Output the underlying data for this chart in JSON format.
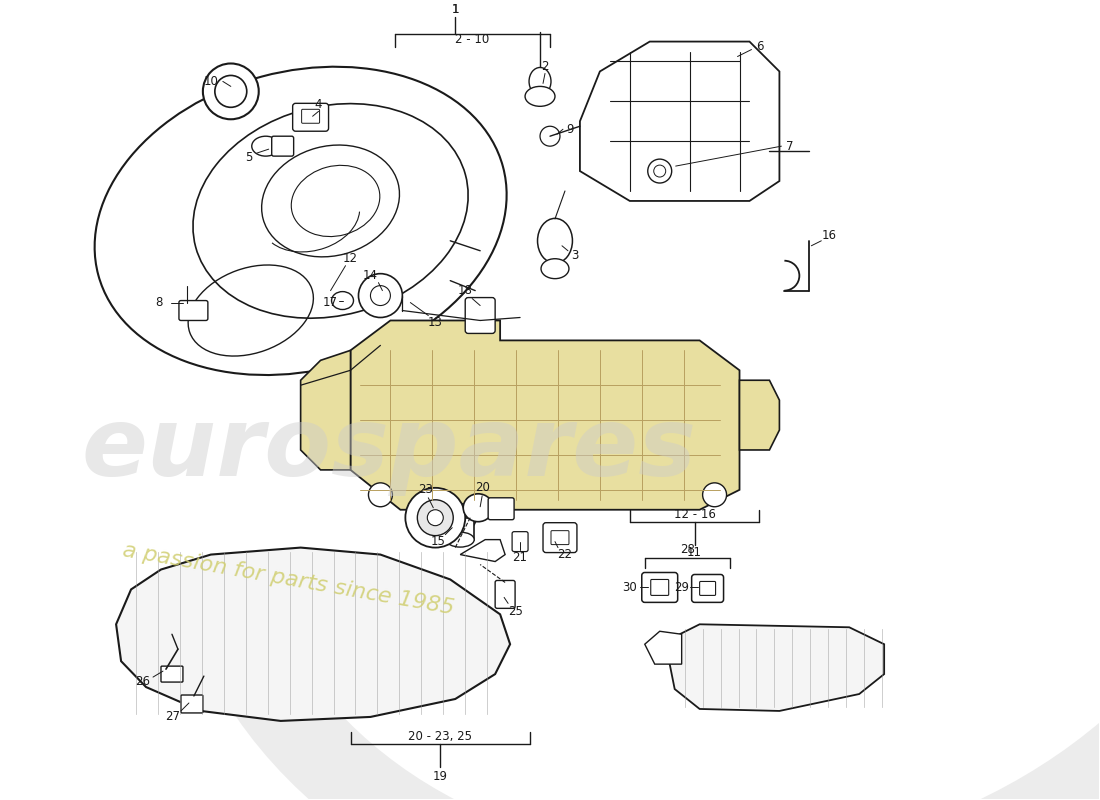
{
  "bg_color": "#ffffff",
  "line_color": "#1a1a1a",
  "watermark1": "eurospares",
  "watermark2": "a passion for parts since 1985",
  "wm1_color": "#cccccc",
  "wm2_color": "#d8d870",
  "fig_width": 11.0,
  "fig_height": 8.0,
  "dpi": 100,
  "label_fs": 8.5,
  "swoosh_color": "#d0d0d0",
  "grid_color": "#d4c890",
  "plate_color": "#e8dfa0"
}
